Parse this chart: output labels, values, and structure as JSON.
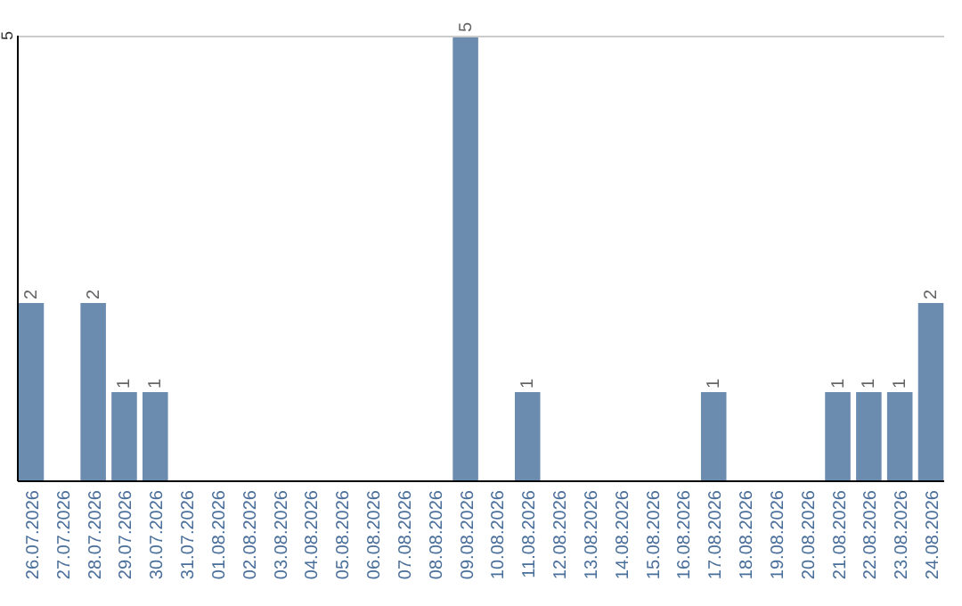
{
  "chart_data": {
    "type": "bar",
    "categories": [
      "26.07.2026",
      "27.07.2026",
      "28.07.2026",
      "29.07.2026",
      "30.07.2026",
      "31.07.2026",
      "01.08.2026",
      "02.08.2026",
      "03.08.2026",
      "04.08.2026",
      "05.08.2026",
      "06.08.2026",
      "07.08.2026",
      "08.08.2026",
      "09.08.2026",
      "10.08.2026",
      "11.08.2026",
      "12.08.2026",
      "13.08.2026",
      "14.08.2026",
      "15.08.2026",
      "16.08.2026",
      "17.08.2026",
      "18.08.2026",
      "19.08.2026",
      "20.08.2026",
      "21.08.2026",
      "22.08.2026",
      "23.08.2026",
      "24.08.2026"
    ],
    "values": [
      2,
      0,
      2,
      1,
      1,
      0,
      0,
      0,
      0,
      0,
      0,
      0,
      0,
      0,
      5,
      0,
      1,
      0,
      0,
      0,
      0,
      0,
      1,
      0,
      0,
      0,
      1,
      1,
      1,
      2
    ],
    "value_labels": [
      "2",
      null,
      "2",
      "1",
      "1",
      null,
      null,
      null,
      null,
      null,
      null,
      null,
      null,
      null,
      "5",
      null,
      "1",
      null,
      null,
      null,
      null,
      null,
      "1",
      null,
      null,
      null,
      "1",
      "1",
      "1",
      "2"
    ],
    "color": "#6b8cae",
    "ylim": [
      0,
      5
    ],
    "yticks": [
      5
    ]
  }
}
